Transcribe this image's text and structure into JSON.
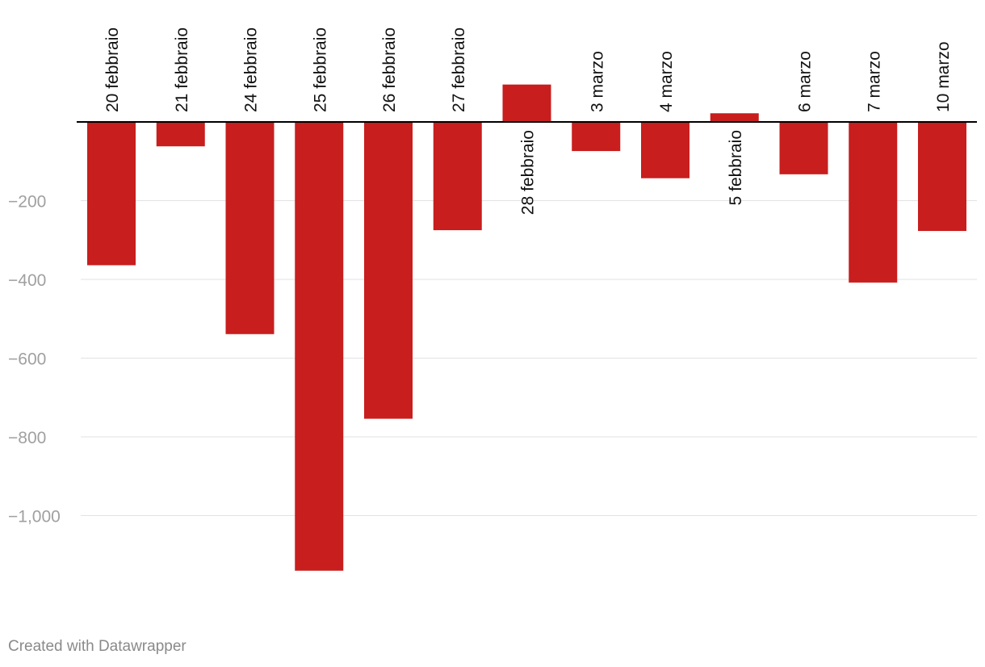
{
  "chart_data": {
    "type": "bar",
    "title": "",
    "xlabel": "",
    "ylabel": "",
    "categories": [
      "20 febbraio",
      "21 febbraio",
      "24 febbraio",
      "25 febbraio",
      "26 febbraio",
      "27 febbraio",
      "28 febbraio",
      "3 marzo",
      "4 marzo",
      "5 febbraio",
      "6 marzo",
      "7 marzo",
      "10 marzo"
    ],
    "values": [
      -364,
      -62,
      -539,
      -1140,
      -754,
      -275,
      95,
      -74,
      -143,
      22,
      -133,
      -408,
      -277
    ],
    "ylim": [
      -1200,
      120
    ],
    "yticks": [
      -200,
      -400,
      -600,
      -800,
      -1000
    ],
    "ytick_labels": [
      "−200",
      "−400",
      "−600",
      "−800",
      "−1,000"
    ],
    "grid": true,
    "bar_color": "#c81e1e",
    "zero_line_color": "#000000",
    "grid_color": "#e2e2e2",
    "tick_label_color": "#a0a0a0",
    "label_color": "#111111"
  },
  "footer": {
    "credit": "Created with Datawrapper"
  }
}
